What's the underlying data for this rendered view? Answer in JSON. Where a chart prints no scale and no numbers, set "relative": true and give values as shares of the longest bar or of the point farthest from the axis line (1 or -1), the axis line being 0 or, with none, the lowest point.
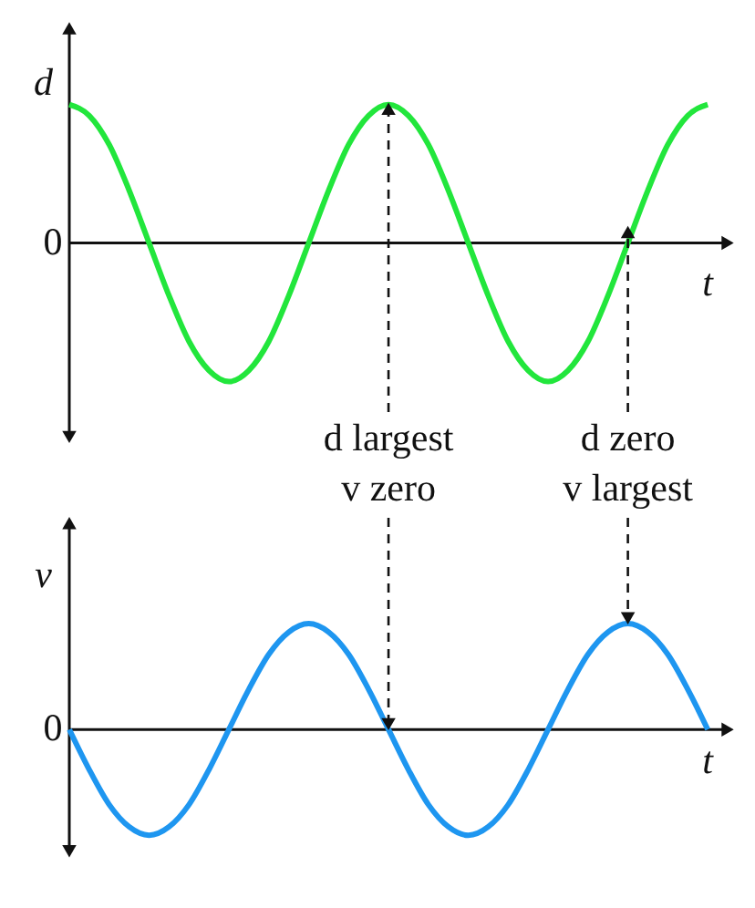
{
  "chart_data": [
    {
      "type": "line",
      "relative": true,
      "ylabel": "d",
      "xlabel": "t",
      "categories": [
        null,
        null,
        null,
        null,
        null,
        null,
        null,
        null,
        null,
        null,
        null,
        null,
        null,
        null,
        null,
        null,
        null,
        null,
        null,
        null,
        null,
        null,
        null,
        null,
        null,
        null,
        null,
        null,
        null,
        null,
        null,
        null,
        null
      ],
      "series": [
        {
          "color": "#22e63c",
          "values": [
            1,
            0.92,
            0.71,
            0.38,
            0,
            -0.38,
            -0.71,
            -0.92,
            -1,
            -0.92,
            -0.71,
            -0.38,
            0,
            0.38,
            0.71,
            0.92,
            1,
            0.92,
            0.71,
            0.38,
            0,
            -0.38,
            -0.71,
            -0.92,
            -1,
            -0.92,
            -0.71,
            -0.38,
            0,
            0.38,
            0.71,
            0.92,
            1
          ]
        }
      ],
      "annotations": [
        "0",
        "d largest",
        "v zero",
        "d zero",
        "v largest"
      ]
    },
    {
      "type": "line",
      "relative": true,
      "ylabel": "v",
      "xlabel": "t",
      "categories": [
        null,
        null,
        null,
        null,
        null,
        null,
        null,
        null,
        null,
        null,
        null,
        null,
        null,
        null,
        null,
        null,
        null,
        null,
        null,
        null,
        null,
        null,
        null,
        null,
        null,
        null,
        null,
        null,
        null,
        null,
        null,
        null,
        null
      ],
      "series": [
        {
          "color": "#1e96f0",
          "values": [
            0,
            -0.38,
            -0.71,
            -0.92,
            -1,
            -0.92,
            -0.71,
            -0.38,
            0,
            0.38,
            0.71,
            0.92,
            1,
            0.92,
            0.71,
            0.38,
            0,
            -0.38,
            -0.71,
            -0.92,
            -1,
            -0.92,
            -0.71,
            -0.38,
            0,
            0.38,
            0.71,
            0.92,
            1,
            0.92,
            0.71,
            0.38,
            0
          ]
        }
      ],
      "annotations": [
        "0"
      ]
    }
  ]
}
